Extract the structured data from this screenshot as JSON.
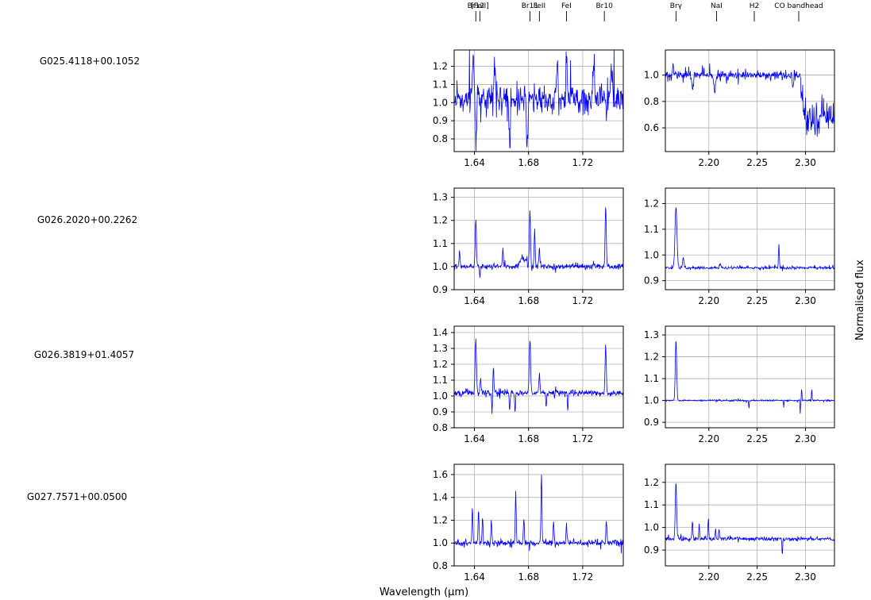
{
  "figure": {
    "xlabel": "Wavelength (μm)",
    "ylabel": "Normalised flux",
    "line_color": "#0000ff"
  },
  "line_markers": {
    "h_band": [
      {
        "label": "Br12",
        "x": 1.641
      },
      {
        "label": "[FeII]",
        "x": 1.644
      },
      {
        "label": "Br11",
        "x": 1.681
      },
      {
        "label": "FeII",
        "x": 1.688
      },
      {
        "label": "FeI",
        "x": 1.708
      },
      {
        "label": "Br10",
        "x": 1.736
      }
    ],
    "k_band": [
      {
        "label": "Brγ",
        "x": 2.166
      },
      {
        "label": "NaI",
        "x": 2.208
      },
      {
        "label": "H2",
        "x": 2.247
      },
      {
        "label": "CO bandhead",
        "x": 2.293
      }
    ]
  },
  "chart_data": [
    {
      "object": "G025.4118+00.1052",
      "type": "line",
      "panels": [
        {
          "band": "H",
          "xlim": [
            1.625,
            1.75
          ],
          "ylim": [
            0.73,
            1.29
          ],
          "xticks": [
            1.64,
            1.68,
            1.72
          ],
          "yticks": [
            0.8,
            0.9,
            1.0,
            1.1,
            1.2
          ],
          "ytick_labels": [
            "0.8",
            "0.9",
            "1.0",
            "1.1",
            "1.2"
          ],
          "base": 1.02,
          "noise": 0.09,
          "seed": 11,
          "features": [
            [
              1.639,
              0.26,
              0.001
            ],
            [
              1.641,
              -0.24,
              0.0008
            ],
            [
              1.655,
              0.18,
              0.0009
            ],
            [
              1.666,
              -0.24,
              0.0007
            ],
            [
              1.679,
              -0.22,
              0.0008
            ],
            [
              1.701,
              0.18,
              0.0008
            ],
            [
              1.708,
              0.21,
              0.0008
            ],
            [
              1.728,
              0.18,
              0.0008
            ],
            [
              1.741,
              0.15,
              0.0008
            ]
          ],
          "grid": true
        },
        {
          "band": "K",
          "xlim": [
            2.155,
            2.33
          ],
          "ylim": [
            0.42,
            1.19
          ],
          "xticks": [
            2.2,
            2.25,
            2.3
          ],
          "yticks": [
            0.6,
            0.8,
            1.0
          ],
          "ytick_labels": [
            "0.6",
            "0.8",
            "1.0"
          ],
          "base": 1.0,
          "noise": 0.035,
          "seed": 21,
          "features": [
            [
              2.163,
              0.09,
              0.0008
            ],
            [
              2.183,
              -0.11,
              0.0012
            ],
            [
              2.206,
              -0.12,
              0.0012
            ],
            [
              2.287,
              -0.08,
              0.0008
            ]
          ],
          "co_drop": {
            "start": 2.295,
            "depth": 0.32,
            "noise": 0.12
          },
          "grid": true
        }
      ]
    },
    {
      "object": "G026.2020+00.2262",
      "type": "line",
      "panels": [
        {
          "band": "H",
          "xlim": [
            1.625,
            1.75
          ],
          "ylim": [
            0.9,
            1.34
          ],
          "xticks": [
            1.64,
            1.68,
            1.72
          ],
          "yticks": [
            0.9,
            1.0,
            1.1,
            1.2,
            1.3
          ],
          "ytick_labels": [
            "0.9",
            "1.0",
            "1.1",
            "1.2",
            "1.3"
          ],
          "base": 1.0,
          "noise": 0.013,
          "seed": 31,
          "features": [
            [
              1.641,
              0.2,
              0.0006
            ],
            [
              1.629,
              0.07,
              0.0005
            ],
            [
              1.661,
              0.08,
              0.0005
            ],
            [
              1.681,
              0.25,
              0.0006
            ],
            [
              1.6845,
              0.16,
              0.0005
            ],
            [
              1.688,
              0.08,
              0.0005
            ],
            [
              1.737,
              0.27,
              0.0006
            ],
            [
              1.644,
              -0.05,
              0.0004
            ],
            [
              1.676,
              0.04,
              0.003
            ]
          ],
          "grid": true
        },
        {
          "band": "K",
          "xlim": [
            2.155,
            2.33
          ],
          "ylim": [
            0.865,
            1.26
          ],
          "xticks": [
            2.2,
            2.25,
            2.3
          ],
          "yticks": [
            0.9,
            1.0,
            1.1,
            1.2
          ],
          "ytick_labels": [
            "0.9",
            "1.0",
            "1.1",
            "1.2"
          ],
          "base": 0.95,
          "noise": 0.006,
          "seed": 41,
          "features": [
            [
              2.166,
              0.24,
              0.0014
            ],
            [
              2.1735,
              0.04,
              0.001
            ],
            [
              2.2725,
              0.09,
              0.0006
            ],
            [
              2.212,
              0.015,
              0.001
            ]
          ],
          "grid": true
        }
      ]
    },
    {
      "object": "G026.3819+01.4057",
      "type": "line",
      "panels": [
        {
          "band": "H",
          "xlim": [
            1.625,
            1.75
          ],
          "ylim": [
            0.8,
            1.44
          ],
          "xticks": [
            1.64,
            1.68,
            1.72
          ],
          "yticks": [
            0.8,
            0.9,
            1.0,
            1.1,
            1.2,
            1.3,
            1.4
          ],
          "ytick_labels": [
            "0.8",
            "0.9",
            "1.0",
            "1.1",
            "1.2",
            "1.3",
            "1.4"
          ],
          "base": 1.02,
          "noise": 0.02,
          "seed": 51,
          "features": [
            [
              1.641,
              0.33,
              0.0007
            ],
            [
              1.6445,
              0.08,
              0.0006
            ],
            [
              1.654,
              0.17,
              0.0005
            ],
            [
              1.681,
              0.35,
              0.0007
            ],
            [
              1.688,
              0.12,
              0.0005
            ],
            [
              1.737,
              0.31,
              0.0006
            ],
            [
              1.653,
              -0.14,
              0.0004
            ],
            [
              1.666,
              -0.12,
              0.0004
            ],
            [
              1.67,
              -0.14,
              0.0004
            ],
            [
              1.693,
              -0.1,
              0.0004
            ],
            [
              1.709,
              -0.11,
              0.0004
            ]
          ],
          "grid": true
        },
        {
          "band": "K",
          "xlim": [
            2.155,
            2.33
          ],
          "ylim": [
            0.875,
            1.34
          ],
          "xticks": [
            2.2,
            2.25,
            2.3
          ],
          "yticks": [
            0.9,
            1.0,
            1.1,
            1.2,
            1.3
          ],
          "ytick_labels": [
            "0.9",
            "1.0",
            "1.1",
            "1.2",
            "1.3"
          ],
          "base": 1.0,
          "noise": 0.004,
          "seed": 61,
          "features": [
            [
              2.166,
              0.28,
              0.001
            ],
            [
              2.2775,
              0.05,
              0.0004
            ],
            [
              2.296,
              0.06,
              0.0004
            ],
            [
              2.3065,
              0.06,
              0.0004
            ],
            [
              2.2775,
              -0.08,
              0.0004
            ],
            [
              2.2415,
              -0.04,
              0.0004
            ],
            [
              2.2945,
              -0.06,
              0.0004
            ]
          ],
          "grid": true
        }
      ]
    },
    {
      "object": "G027.7571+00.0500",
      "type": "line",
      "panels": [
        {
          "band": "H",
          "xlim": [
            1.625,
            1.75
          ],
          "ylim": [
            0.8,
            1.69
          ],
          "xticks": [
            1.64,
            1.68,
            1.72
          ],
          "yticks": [
            0.8,
            1.0,
            1.2,
            1.4,
            1.6
          ],
          "ytick_labels": [
            "0.8",
            "1.0",
            "1.2",
            "1.4",
            "1.6"
          ],
          "base": 1.0,
          "noise": 0.03,
          "seed": 71,
          "features": [
            [
              1.6385,
              0.32,
              0.0005
            ],
            [
              1.643,
              0.3,
              0.0005
            ],
            [
              1.646,
              0.22,
              0.0005
            ],
            [
              1.6525,
              0.2,
              0.0005
            ],
            [
              1.6705,
              0.45,
              0.0005
            ],
            [
              1.6765,
              0.22,
              0.0005
            ],
            [
              1.6895,
              0.6,
              0.0005
            ],
            [
              1.6985,
              0.2,
              0.0005
            ],
            [
              1.708,
              0.18,
              0.0005
            ],
            [
              1.7375,
              0.21,
              0.0005
            ]
          ],
          "grid": true
        },
        {
          "band": "K",
          "xlim": [
            2.155,
            2.33
          ],
          "ylim": [
            0.83,
            1.28
          ],
          "xticks": [
            2.2,
            2.25,
            2.3
          ],
          "yticks": [
            0.9,
            1.0,
            1.1,
            1.2
          ],
          "ytick_labels": [
            "0.9",
            "1.0",
            "1.1",
            "1.2"
          ],
          "base": 0.95,
          "noise": 0.01,
          "seed": 81,
          "features": [
            [
              2.166,
              0.25,
              0.001
            ],
            [
              2.183,
              0.08,
              0.0006
            ],
            [
              2.19,
              0.06,
              0.0006
            ],
            [
              2.1995,
              0.09,
              0.0006
            ],
            [
              2.207,
              0.05,
              0.0006
            ],
            [
              2.2105,
              0.05,
              0.0006
            ],
            [
              2.276,
              -0.07,
              0.0005
            ]
          ],
          "grid": true
        }
      ]
    }
  ]
}
